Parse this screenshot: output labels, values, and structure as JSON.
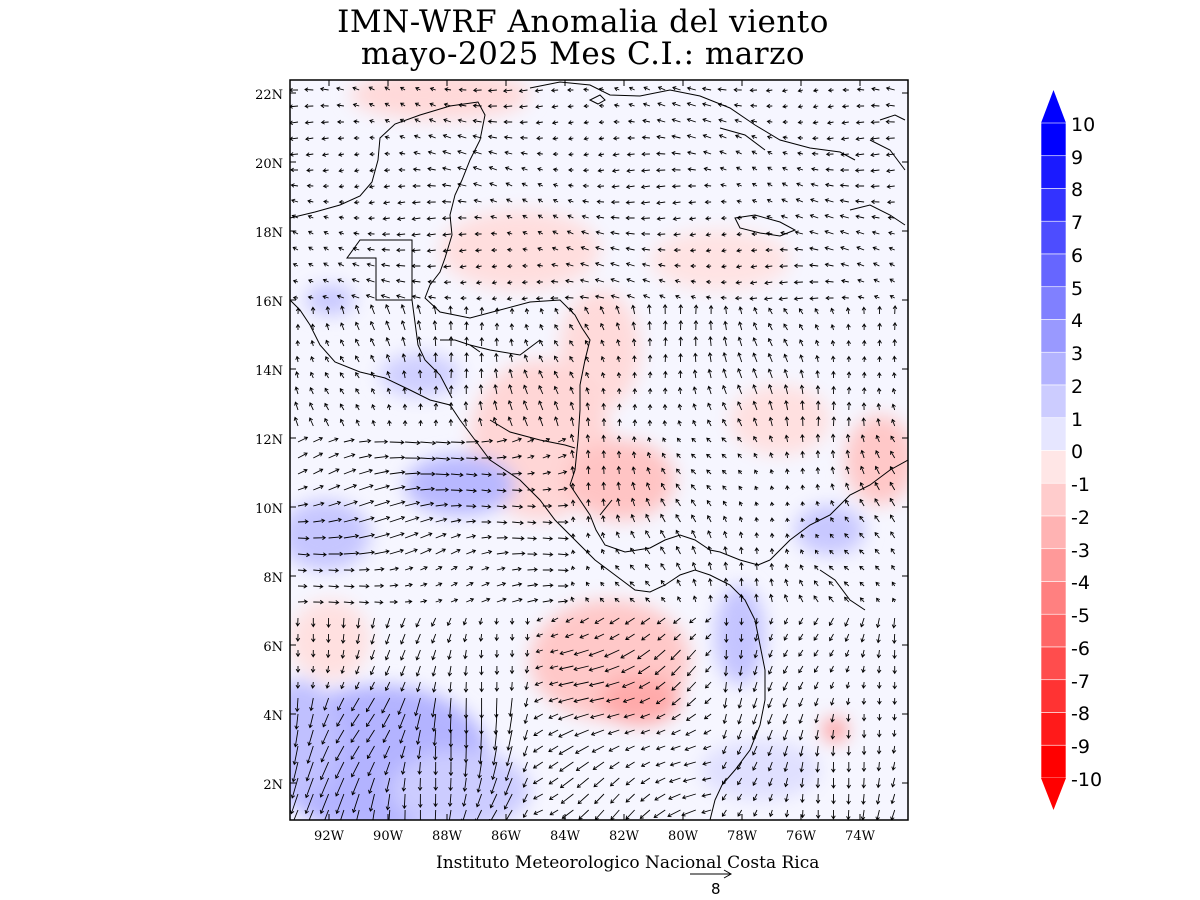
{
  "title": {
    "line1": "IMN-WRF Anomalia del viento",
    "line2": "mayo-2025 Mes C.I.: marzo"
  },
  "map": {
    "lat_labels": [
      "22N",
      "20N",
      "18N",
      "16N",
      "14N",
      "12N",
      "10N",
      "8N",
      "6N",
      "4N",
      "2N"
    ],
    "lon_labels": [
      "92W",
      "90W",
      "88W",
      "86W",
      "84W",
      "82W",
      "80W",
      "78W",
      "76W",
      "74W"
    ],
    "lat_range": [
      1,
      22.4
    ],
    "lon_range": [
      -93,
      -72
    ]
  },
  "colorbar": {
    "labels": [
      "10",
      "9",
      "8",
      "7",
      "6",
      "5",
      "4",
      "3",
      "2",
      "1",
      "0",
      "-1",
      "-2",
      "-3",
      "-4",
      "-5",
      "-6",
      "-7",
      "-8",
      "-9",
      "-10"
    ],
    "colors": [
      "#0000ff",
      "#1a1aff",
      "#3333ff",
      "#4d4dff",
      "#6666ff",
      "#8080ff",
      "#9999ff",
      "#b3b3ff",
      "#ccccff",
      "#e6e6ff",
      "#ffffff",
      "#ffe6e6",
      "#ffcccc",
      "#ffb3b3",
      "#ff9999",
      "#ff8080",
      "#ff6666",
      "#ff4d4d",
      "#ff3333",
      "#ff1a1a",
      "#ff0000"
    ]
  },
  "footer": {
    "credit": "Instituto Meteorologico Nacional Costa Rica",
    "reference_vector_value": "8"
  }
}
